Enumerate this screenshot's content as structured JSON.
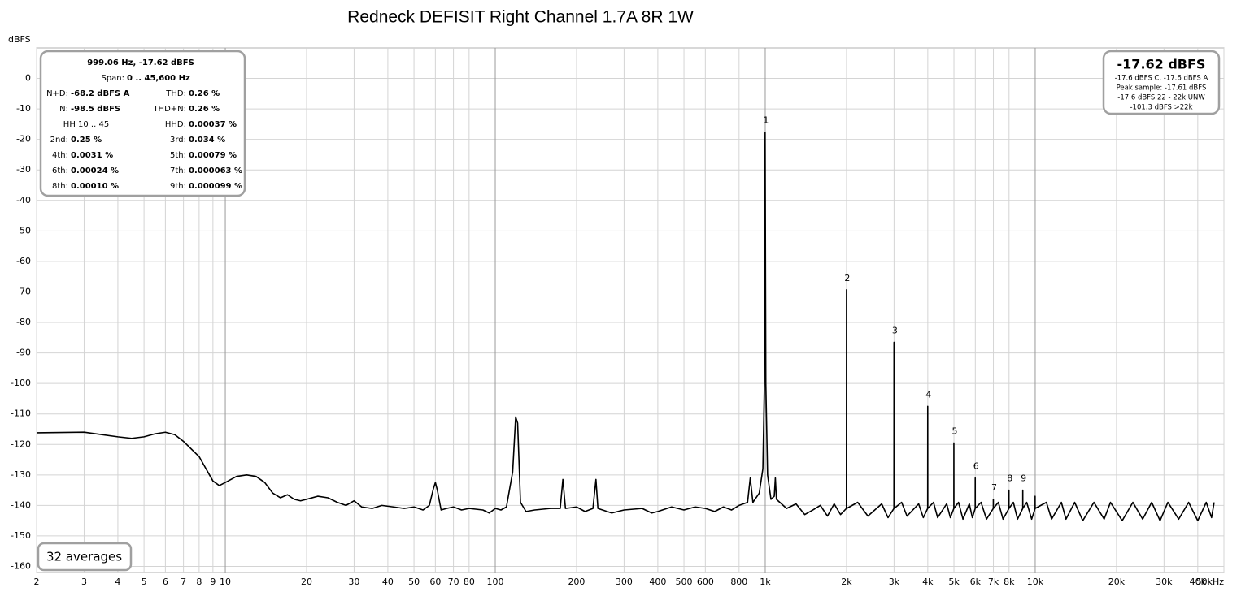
{
  "chart_data": {
    "type": "line",
    "title": "Redneck DEFISIT Right Channel 1.7A 8R 1W",
    "y_label": "dBFS",
    "color": "#000000",
    "log_x": true,
    "grid": true,
    "xlim": [
      2,
      50000
    ],
    "ylim": [
      -162,
      10
    ],
    "xticks": [
      2,
      3,
      4,
      5,
      6,
      7,
      8,
      9,
      10,
      20,
      30,
      40,
      50,
      60,
      70,
      80,
      100,
      200,
      300,
      400,
      500,
      600,
      800,
      {
        "value": 1000,
        "label": "1k"
      },
      {
        "value": 2000,
        "label": "2k"
      },
      {
        "value": 3000,
        "label": "3k"
      },
      {
        "value": 4000,
        "label": "4k"
      },
      {
        "value": 5000,
        "label": "5k"
      },
      {
        "value": 6000,
        "label": "6k"
      },
      {
        "value": 7000,
        "label": "7k"
      },
      {
        "value": 8000,
        "label": "8k"
      },
      {
        "value": 10000,
        "label": "10k"
      },
      {
        "value": 20000,
        "label": "20k"
      },
      {
        "value": 30000,
        "label": "30k"
      },
      {
        "value": 40000,
        "label": "40k"
      },
      {
        "value": 50000,
        "label": "50kHz"
      }
    ],
    "yticks": [
      0,
      -10,
      -20,
      -30,
      -40,
      -50,
      -60,
      -70,
      -80,
      -90,
      -100,
      -110,
      -120,
      -130,
      -140,
      -150,
      -160
    ],
    "x": [
      2,
      3,
      4,
      4.5,
      5,
      5.5,
      6,
      6.5,
      7,
      8,
      9,
      9.5,
      10,
      11,
      12,
      13,
      14,
      15,
      16,
      17,
      18,
      19,
      20,
      22,
      24,
      26,
      28,
      30,
      32,
      35,
      38,
      42,
      46,
      50,
      54,
      57,
      59,
      60,
      61,
      63,
      66,
      70,
      75,
      80,
      90,
      95,
      100,
      105,
      110,
      116,
      119,
      121,
      124,
      130,
      140,
      160,
      174,
      178,
      182,
      200,
      215,
      230,
      236,
      240,
      270,
      300,
      350,
      380,
      400,
      450,
      500,
      550,
      600,
      650,
      700,
      750,
      800,
      860,
      880,
      900,
      950,
      980,
      993,
      999.06,
      1005,
      1020,
      1050,
      1080,
      1090,
      1100,
      1200,
      1300,
      1400,
      1500,
      1600,
      1700,
      1800,
      1900,
      1998,
      2000,
      2002,
      2200,
      2400,
      2700,
      2850,
      2997,
      2999,
      3001,
      3200,
      3350,
      3700,
      3850,
      3996,
      3998,
      4000,
      4200,
      4350,
      4700,
      4850,
      4995,
      4997,
      4999,
      5200,
      5400,
      5700,
      5850,
      5994,
      5996,
      5998,
      6300,
      6600,
      6994,
      6996,
      6998,
      7300,
      7600,
      7993,
      7995,
      7997,
      8300,
      8600,
      8992,
      8994,
      8996,
      9300,
      9700,
      9991,
      9993,
      9995,
      11000,
      11500,
      12500,
      13000,
      14000,
      15000,
      16500,
      18000,
      19000,
      21000,
      23000,
      25000,
      27000,
      29000,
      31000,
      34000,
      37000,
      40000,
      43000,
      45000,
      46000
    ],
    "values": [
      -116.2,
      -116,
      -117.5,
      -118,
      -117.5,
      -116.5,
      -116,
      -116.8,
      -119,
      -124,
      -132,
      -133.5,
      -132.5,
      -130.5,
      -130,
      -130.5,
      -132.5,
      -136,
      -137.5,
      -136.5,
      -138,
      -138.5,
      -138,
      -137,
      -137.5,
      -139,
      -140,
      -138.5,
      -140.5,
      -141,
      -140,
      -140.5,
      -141,
      -140.5,
      -141.5,
      -140,
      -134.5,
      -132.5,
      -135,
      -141.5,
      -141,
      -140.5,
      -141.5,
      -141,
      -141.5,
      -142.5,
      -141,
      -141.5,
      -140.5,
      -129,
      -111,
      -113,
      -139,
      -142,
      -141.5,
      -141,
      -141,
      -131.5,
      -141,
      -140.5,
      -142,
      -141,
      -131.5,
      -141,
      -142.5,
      -141.5,
      -141,
      -142.5,
      -142,
      -140.5,
      -141.5,
      -140.5,
      -141,
      -142,
      -140.5,
      -141.5,
      -140,
      -139,
      -131,
      -139,
      -136,
      -128,
      -100,
      -17.62,
      -100,
      -130,
      -138,
      -137,
      -131,
      -138,
      -141,
      -139.5,
      -143,
      -141.5,
      -140,
      -143.5,
      -139.5,
      -143,
      -141,
      -69.3,
      -141,
      -139,
      -143.5,
      -139.5,
      -144,
      -141,
      -86.5,
      -141,
      -139,
      -143.5,
      -139.5,
      -144,
      -141,
      -107.5,
      -141,
      -139,
      -144,
      -139.5,
      -144,
      -141,
      -119.5,
      -141,
      -139,
      -144.5,
      -139.5,
      -144,
      -141,
      -131,
      -141,
      -139,
      -144.5,
      -141,
      -138,
      -141,
      -139,
      -144.5,
      -141,
      -135,
      -141,
      -139,
      -144.5,
      -141,
      -135,
      -141,
      -139,
      -144.5,
      -141,
      -137,
      -141,
      -139,
      -144.5,
      -139,
      -144.5,
      -139,
      -145,
      -139,
      -144.5,
      -139,
      -145,
      -139,
      -144.5,
      -139,
      -145,
      -139,
      -144.5,
      -139,
      -145,
      -139,
      -144,
      -139
    ],
    "peak_labels": [
      {
        "text": "1",
        "x": 999.06,
        "y": -17.62
      },
      {
        "text": "2",
        "x": 2000,
        "y": -69.3
      },
      {
        "text": "3",
        "x": 2999,
        "y": -86.5
      },
      {
        "text": "4",
        "x": 3998,
        "y": -107.5
      },
      {
        "text": "5",
        "x": 4997,
        "y": -119.5
      },
      {
        "text": "6",
        "x": 5996,
        "y": -131
      },
      {
        "text": "7",
        "x": 6996,
        "y": -138
      },
      {
        "text": "8",
        "x": 7995,
        "y": -135
      },
      {
        "text": "9",
        "x": 8994,
        "y": -135
      }
    ],
    "info_box": {
      "header": "999.06 Hz, -17.62 dBFS",
      "span_label": "Span:",
      "span_value": "0 .. 45,600 Hz",
      "rows": [
        {
          "left_label": "N+D:",
          "left_value": "-68.2 dBFS A",
          "right_label": "THD:",
          "right_value": "0.26 %"
        },
        {
          "left_label": "N:",
          "left_value": "-98.5 dBFS",
          "right_label": "THD+N:",
          "right_value": "0.26 %"
        },
        {
          "left_label": "HH 10 .. 45",
          "right_label": "HHD:",
          "right_value": "0.00037 %"
        },
        {
          "left_label": "2nd:",
          "left_value": "0.25 %",
          "right_label": "3rd:",
          "right_value": "0.034 %"
        },
        {
          "left_label": "4th:",
          "left_value": "0.0031 %",
          "right_label": "5th:",
          "right_value": "0.00079 %"
        },
        {
          "left_label": "6th:",
          "left_value": "0.00024 %",
          "right_label": "7th:",
          "right_value": "0.000063 %"
        },
        {
          "left_label": "8th:",
          "left_value": "0.00010 %",
          "right_label": "9th:",
          "right_value": "0.000099 %"
        }
      ]
    },
    "level_box": {
      "level": "-17.62 dBFS",
      "lines": [
        "-17.6 dBFS C, -17.6 dBFS A",
        "Peak sample: -17.61 dBFS",
        "-17.6 dBFS 22 - 22k UNW",
        "-101.3 dBFS >22k"
      ]
    },
    "averages": "32 averages"
  }
}
